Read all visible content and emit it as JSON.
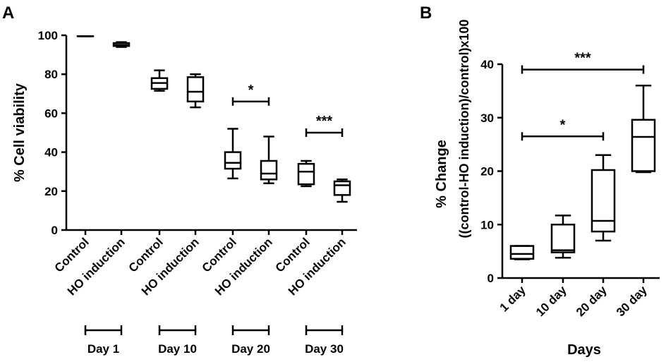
{
  "chart_data": [
    {
      "panel": "A",
      "type": "box",
      "ylabel": "% Cell viability",
      "ylim": [
        0,
        100
      ],
      "yticks": [
        0,
        20,
        40,
        60,
        80,
        100
      ],
      "categories": [
        "Control",
        "HO induction",
        "Control",
        "HO induction",
        "Control",
        "HO induction",
        "Control",
        "HO induction"
      ],
      "boxes": [
        {
          "min": 99.5,
          "q1": 99.5,
          "median": 99.5,
          "q3": 99.5,
          "max": 99.5
        },
        {
          "min": 94,
          "q1": 94.5,
          "median": 95,
          "q3": 96,
          "max": 96.5
        },
        {
          "min": 71.5,
          "q1": 72.5,
          "median": 75.5,
          "q3": 78,
          "max": 82
        },
        {
          "min": 63,
          "q1": 66,
          "median": 71,
          "q3": 78.5,
          "max": 80
        },
        {
          "min": 26.5,
          "q1": 31.5,
          "median": 34.5,
          "q3": 40,
          "max": 52
        },
        {
          "min": 24,
          "q1": 26,
          "median": 29,
          "q3": 35.5,
          "max": 48
        },
        {
          "min": 22.5,
          "q1": 23.5,
          "median": 30,
          "q3": 34,
          "max": 35.5
        },
        {
          "min": 14.5,
          "q1": 18,
          "median": 23,
          "q3": 25,
          "max": 26
        }
      ],
      "groups": [
        {
          "label": "Day 1",
          "members": [
            0,
            1
          ]
        },
        {
          "label": "Day 10",
          "members": [
            2,
            3
          ]
        },
        {
          "label": "Day 20",
          "members": [
            4,
            5
          ]
        },
        {
          "label": "Day 30",
          "members": [
            6,
            7
          ]
        }
      ],
      "significance": [
        {
          "label": "*",
          "from": 4,
          "to": 5,
          "y": 66
        },
        {
          "label": "***",
          "from": 6,
          "to": 7,
          "y": 50
        }
      ]
    },
    {
      "panel": "B",
      "type": "box",
      "xlabel": "Days",
      "ylabel": "% Change",
      "ylabel2": "((control-HO induction)/control)x100",
      "ylim": [
        0,
        40
      ],
      "yticks": [
        0,
        10,
        20,
        30,
        40
      ],
      "categories": [
        "1 day",
        "10 day",
        "20 day",
        "30 day"
      ],
      "boxes": [
        {
          "min": 3.5,
          "q1": 3.6,
          "median": 4.5,
          "q3": 6,
          "max": 6
        },
        {
          "min": 3.8,
          "q1": 4.8,
          "median": 5.2,
          "q3": 10,
          "max": 11.7
        },
        {
          "min": 7,
          "q1": 8.7,
          "median": 10.7,
          "q3": 20.2,
          "max": 23
        },
        {
          "min": 19.8,
          "q1": 20,
          "median": 26.4,
          "q3": 29.6,
          "max": 36
        }
      ],
      "significance": [
        {
          "label": "***",
          "from": 0,
          "to": 3,
          "y": 39
        },
        {
          "label": "*",
          "from": 0,
          "to": 2,
          "y": 26.5
        }
      ]
    }
  ]
}
